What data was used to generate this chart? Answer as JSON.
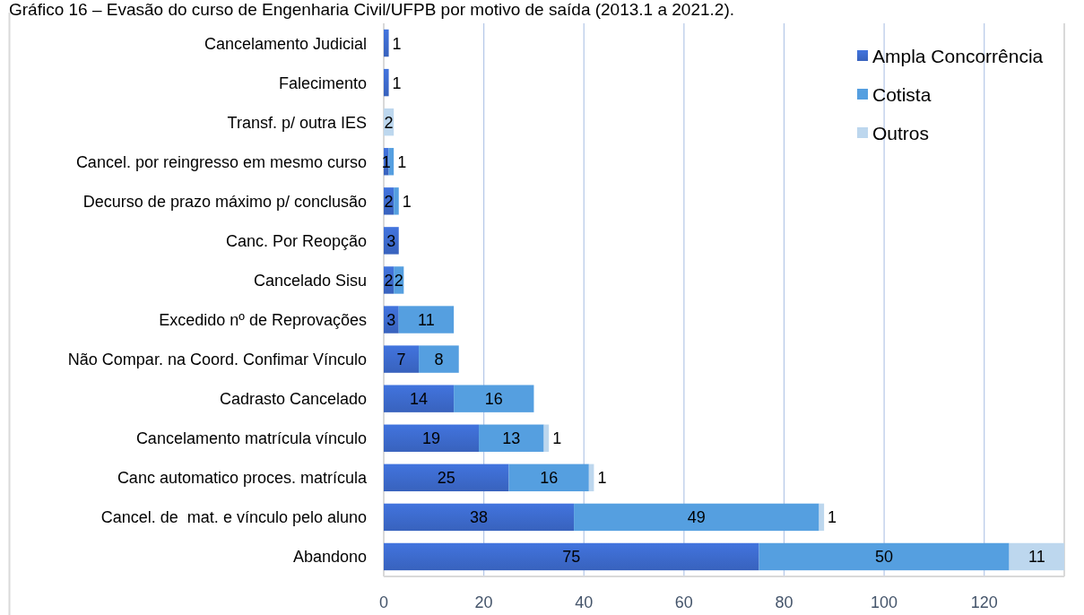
{
  "chart_data": {
    "type": "bar",
    "orientation": "horizontal",
    "stacked": true,
    "title": "Gráfico 16 – Evasão do curso de Engenharia Civil/UFPB por motivo de saída (2013.1 a 2021.2).",
    "categories": [
      "Cancelamento Judicial",
      "Falecimento",
      "Transf. p/ outra IES",
      "Cancel. por reingresso em mesmo curso",
      "Decurso de prazo máximo p/ conclusão",
      "Canc. Por Reopção",
      "Cancelado Sisu",
      "Excedido nº de Reprovações",
      "Não Compar. na Coord. Confimar Vínculo",
      "Cadrasto Cancelado",
      "Cancelamento matrícula vínculo",
      "Canc automatico proces. matrícula",
      "Cancel. de  mat. e vínculo pelo aluno",
      "Abandono"
    ],
    "series": [
      {
        "name": "Ampla Concorrência",
        "color": "#3a66c4",
        "values": [
          1,
          1,
          null,
          1,
          2,
          3,
          2,
          3,
          7,
          14,
          19,
          25,
          38,
          75
        ]
      },
      {
        "name": "Cotista",
        "color": "#559fe0",
        "values": [
          null,
          null,
          null,
          1,
          1,
          null,
          2,
          11,
          8,
          16,
          13,
          16,
          49,
          50
        ]
      },
      {
        "name": "Outros",
        "color": "#bdd7ee",
        "values": [
          null,
          null,
          2,
          null,
          null,
          null,
          null,
          null,
          null,
          null,
          1,
          1,
          1,
          11
        ]
      }
    ],
    "xlim": [
      0,
      136
    ],
    "xticks": [
      0,
      20,
      40,
      60,
      80,
      100,
      120
    ],
    "grid": "x",
    "legend": "top right",
    "data_labels": true
  }
}
